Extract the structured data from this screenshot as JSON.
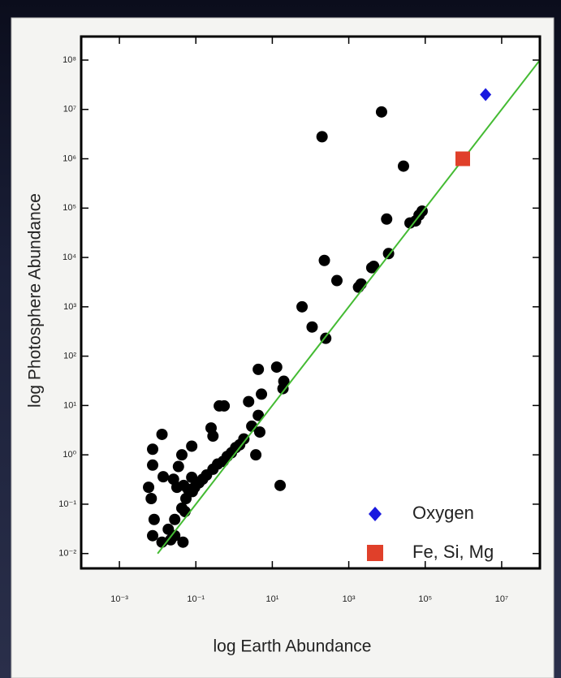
{
  "chart_data": {
    "type": "scatter",
    "xlabel": "log Earth Abundance",
    "ylabel": "log Photosphere Abundance",
    "xscale": "log",
    "yscale": "log",
    "xlim": [
      0.0001,
      100000000
    ],
    "ylim": [
      0.005,
      300000000
    ],
    "xticks": [
      {
        "value": 0.001,
        "label": "10⁻³"
      },
      {
        "value": 0.1,
        "label": "10⁻¹"
      },
      {
        "value": 10,
        "label": "10¹"
      },
      {
        "value": 1000,
        "label": "10³"
      },
      {
        "value": 100000,
        "label": "10⁵"
      },
      {
        "value": 10000000,
        "label": "10⁷"
      }
    ],
    "yticks": [
      {
        "value": 0.01,
        "label": "10⁻²"
      },
      {
        "value": 0.1,
        "label": "10⁻¹"
      },
      {
        "value": 1,
        "label": "10⁰"
      },
      {
        "value": 10,
        "label": "10¹"
      },
      {
        "value": 100,
        "label": "10²"
      },
      {
        "value": 1000,
        "label": "10³"
      },
      {
        "value": 10000,
        "label": "10⁴"
      },
      {
        "value": 100000,
        "label": "10⁵"
      },
      {
        "value": 1000000,
        "label": "10⁶"
      },
      {
        "value": 10000000,
        "label": "10⁷"
      },
      {
        "value": 100000000,
        "label": "10⁸"
      }
    ],
    "legend": "lower right",
    "series": [
      {
        "marker": "circle",
        "color": "#000000",
        "x": [
          7200,
          200,
          27000,
          9800,
          56000,
          69000,
          40000,
          83000,
          230,
          490,
          60,
          110,
          250,
          1800,
          2100,
          4000,
          11000,
          4500,
          13,
          4.3,
          20,
          5.2,
          19,
          2.4,
          0.41,
          0.55,
          0.25,
          0.28,
          4.3,
          2.9,
          1.8,
          1.4,
          1.1,
          0.85,
          0.66,
          0.52,
          0.37,
          0.28,
          0.19,
          0.15,
          0.12,
          0.093,
          0.078,
          0.081,
          0.055,
          0.043,
          0.028,
          0.019,
          0.028,
          0.022,
          0.046,
          0.013,
          0.0074,
          0.013,
          0.0074,
          0.0074,
          0.014,
          0.035,
          0.078,
          0.043,
          0.026,
          0.032,
          0.048,
          0.063,
          0.0058,
          0.0068,
          0.052,
          0.0081,
          16,
          3.7,
          4.7
        ],
        "values": [
          8900000,
          2800000,
          710000,
          60000,
          55000,
          72000,
          50000,
          87000,
          8700,
          3400,
          1000,
          390,
          230,
          2500,
          2900,
          6200,
          12000,
          6600,
          60,
          54,
          31,
          17,
          22,
          12,
          9.8,
          9.8,
          3.5,
          2.4,
          6.3,
          3.8,
          2.1,
          1.6,
          1.4,
          1.1,
          0.93,
          0.74,
          0.65,
          0.51,
          0.39,
          0.32,
          0.27,
          0.22,
          0.35,
          0.18,
          0.13,
          0.083,
          0.049,
          0.031,
          0.023,
          0.019,
          0.017,
          0.017,
          0.023,
          2.6,
          1.3,
          0.62,
          0.36,
          0.58,
          1.5,
          1.0,
          0.32,
          0.22,
          0.24,
          0.2,
          0.22,
          0.13,
          0.071,
          0.049,
          0.24,
          1.0,
          2.9
        ]
      },
      {
        "type": "line",
        "color": "#44bb33",
        "x": [
          0.01,
          100000000
        ],
        "values": [
          0.01,
          100000000
        ]
      },
      {
        "name": "Oxygen",
        "marker": "diamond",
        "color": "#1a1adf",
        "x": [
          3800000
        ],
        "values": [
          20000000
        ]
      },
      {
        "name": "Fe, Si, Mg",
        "marker": "square",
        "color": "#e0402a",
        "x": [
          960000
        ],
        "values": [
          1000000
        ]
      }
    ]
  }
}
